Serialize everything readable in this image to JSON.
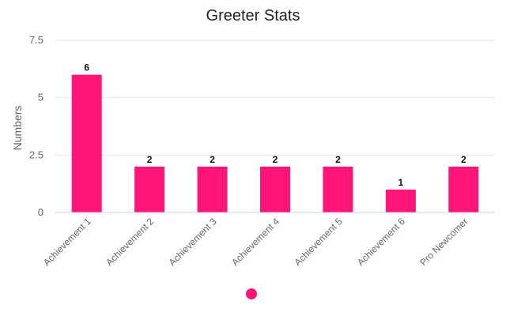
{
  "chart_data": {
    "type": "bar",
    "title": "Greeter Stats",
    "xlabel": "",
    "ylabel": "Numbers",
    "categories": [
      "Achievement 1",
      "Achievement 2",
      "Achievement 3",
      "Achievement 4",
      "Achievement 5",
      "Achievement 6",
      "Pro Newcomer"
    ],
    "values": [
      6,
      2,
      2,
      2,
      2,
      1,
      2
    ],
    "ylim": [
      0,
      7.5
    ],
    "yticks": [
      0,
      2.5,
      5,
      7.5
    ],
    "ytick_labels": [
      "0",
      "2.5",
      "5",
      "7.5"
    ],
    "grid": true,
    "legend": [
      {
        "name": "",
        "color": "#ff1478"
      }
    ],
    "legend_position": "bottom-center",
    "bar_color": "#ff1478",
    "grid_color": "#e6e6e6",
    "axis_color": "#c8d4e8"
  }
}
